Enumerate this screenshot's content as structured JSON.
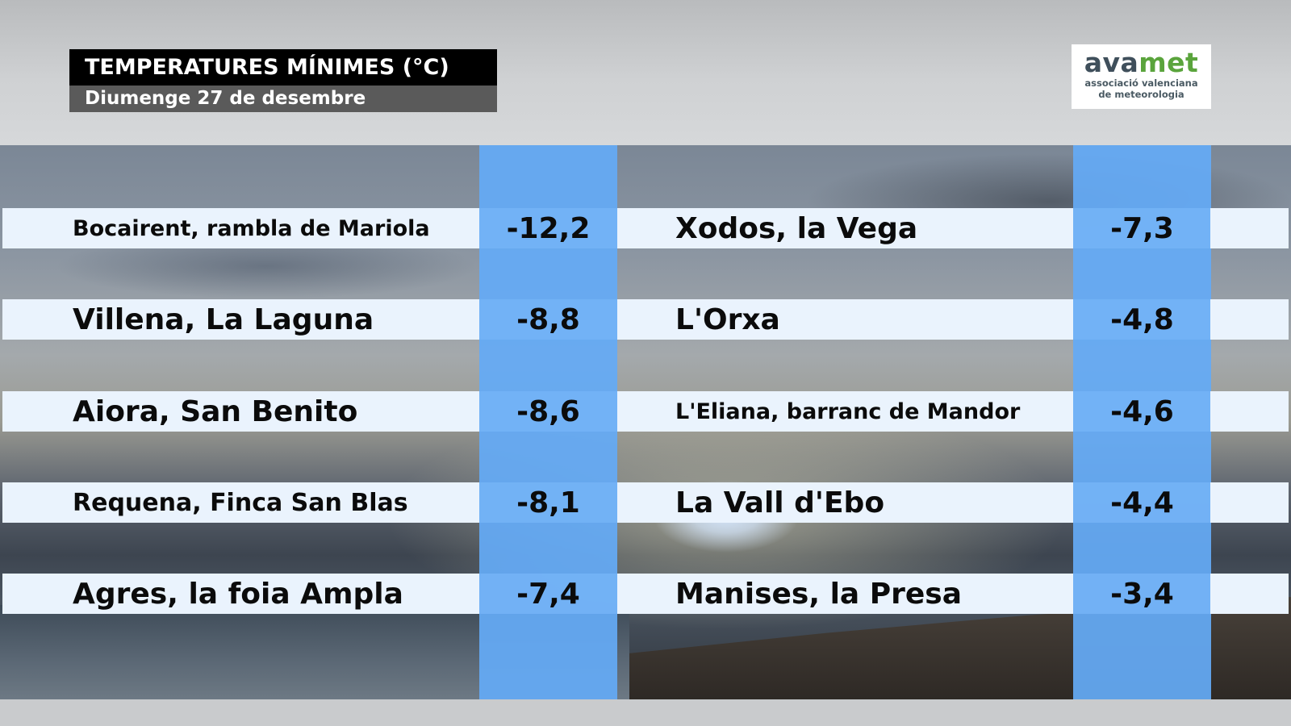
{
  "header": {
    "title": "TEMPERATURES MÍNIMES (°C)",
    "subtitle": "Diumenge 27 de desembre"
  },
  "logo": {
    "word_part1": "ava",
    "word_part2": "met",
    "tagline_line1": "associació valenciana",
    "tagline_line2": "de meteorologia",
    "colors": {
      "dark": "#3f4f5b",
      "green": "#5aa43c"
    }
  },
  "colors": {
    "row_background": "#eaf3fd",
    "value_column": "#64aaf5",
    "title_background": "#000000",
    "subtitle_background": "#5a5a5a"
  },
  "rows": [
    {
      "left": {
        "station": "Bocairent, rambla de Mariola",
        "value": "-12,2"
      },
      "right": {
        "station": "Xodos, la Vega",
        "value": "-7,3"
      }
    },
    {
      "left": {
        "station": "Villena, La Laguna",
        "value": "-8,8"
      },
      "right": {
        "station": "L'Orxa",
        "value": "-4,8"
      }
    },
    {
      "left": {
        "station": "Aiora, San Benito",
        "value": "-8,6"
      },
      "right": {
        "station": "L'Eliana, barranc de Mandor",
        "value": "-4,6"
      }
    },
    {
      "left": {
        "station": "Requena, Finca San Blas",
        "value": "-8,1"
      },
      "right": {
        "station": "La Vall d'Ebo",
        "value": "-4,4"
      }
    },
    {
      "left": {
        "station": "Agres, la foia Ampla",
        "value": "-7,4"
      },
      "right": {
        "station": "Manises, la Presa",
        "value": "-3,4"
      }
    }
  ]
}
